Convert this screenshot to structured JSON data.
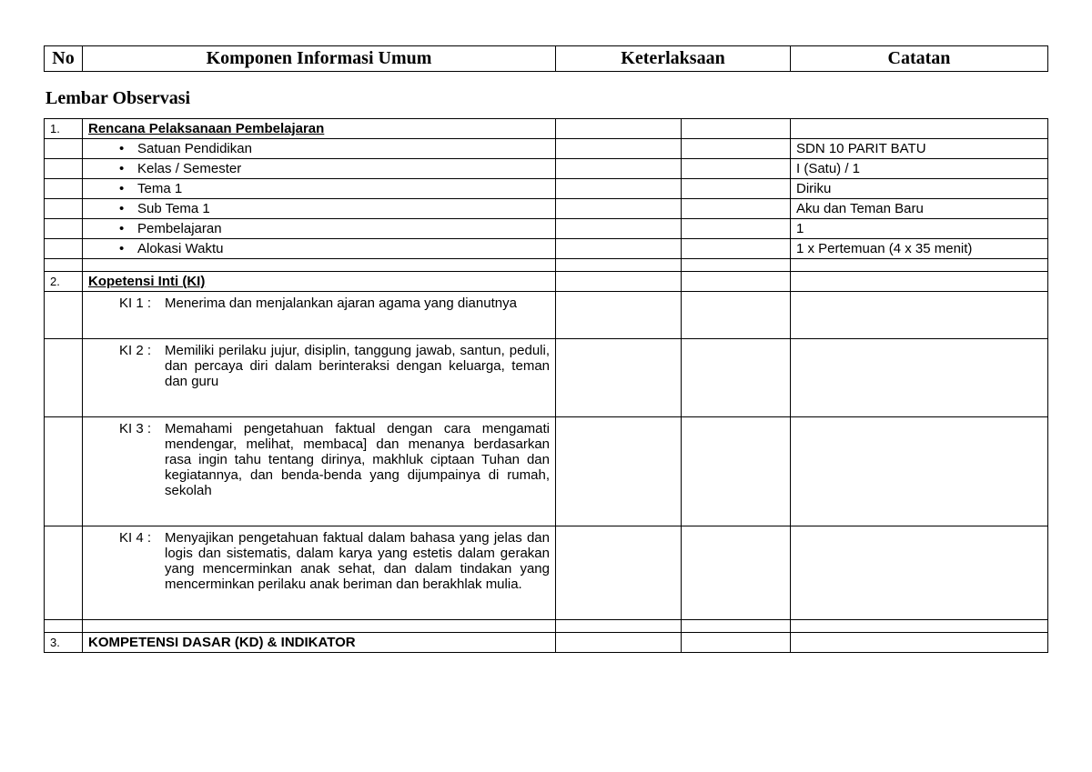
{
  "header": {
    "no": "No",
    "komponen": "Komponen Informasi Umum",
    "keterlaksaan": "Keterlaksaan",
    "catatan": "Catatan"
  },
  "subtitle": "Lembar Observasi",
  "sections": {
    "s1": {
      "num": "1.",
      "title": "Rencana Pelaksanaan Pembelajaran"
    },
    "s2": {
      "num": "2.",
      "title": "Kopetensi Inti (KI)"
    },
    "s3": {
      "num": "3.",
      "title": "KOMPETENSI DASAR (KD) & INDIKATOR"
    }
  },
  "rpp": {
    "items": [
      {
        "label": "Satuan Pendidikan",
        "value": "SDN 10 PARIT BATU"
      },
      {
        "label": "Kelas / Semester",
        "value": "I (Satu) / 1"
      },
      {
        "label": "Tema 1",
        "value": "Diriku"
      },
      {
        "label": "Sub Tema 1",
        "value": "Aku dan Teman Baru"
      },
      {
        "label": "Pembelajaran",
        "value": "1"
      },
      {
        "label": "Alokasi Waktu",
        "value": "1 x Pertemuan (4 x 35 menit)"
      }
    ]
  },
  "ki": [
    {
      "label": "KI 1  :",
      "text": "Menerima dan menjalankan ajaran agama yang dianutnya"
    },
    {
      "label": "KI 2  :",
      "text": "Memiliki perilaku jujur, disiplin, tanggung jawab, santun, peduli, dan percaya diri dalam berinteraksi dengan keluarga, teman dan guru"
    },
    {
      "label": "KI 3  :",
      "text": "Memahami pengetahuan faktual dengan cara mengamati mendengar, melihat, membaca] dan menanya berdasarkan rasa ingin tahu tentang dirinya, makhluk ciptaan Tuhan dan kegiatannya, dan benda-benda yang dijumpainya di rumah, sekolah"
    },
    {
      "label": "KI 4  :",
      "text": "Menyajikan pengetahuan faktual dalam bahasa yang jelas dan logis dan sistematis, dalam karya yang estetis dalam gerakan yang mencerminkan anak sehat, dan dalam tindakan yang mencerminkan perilaku anak beriman dan berakhlak mulia."
    }
  ]
}
